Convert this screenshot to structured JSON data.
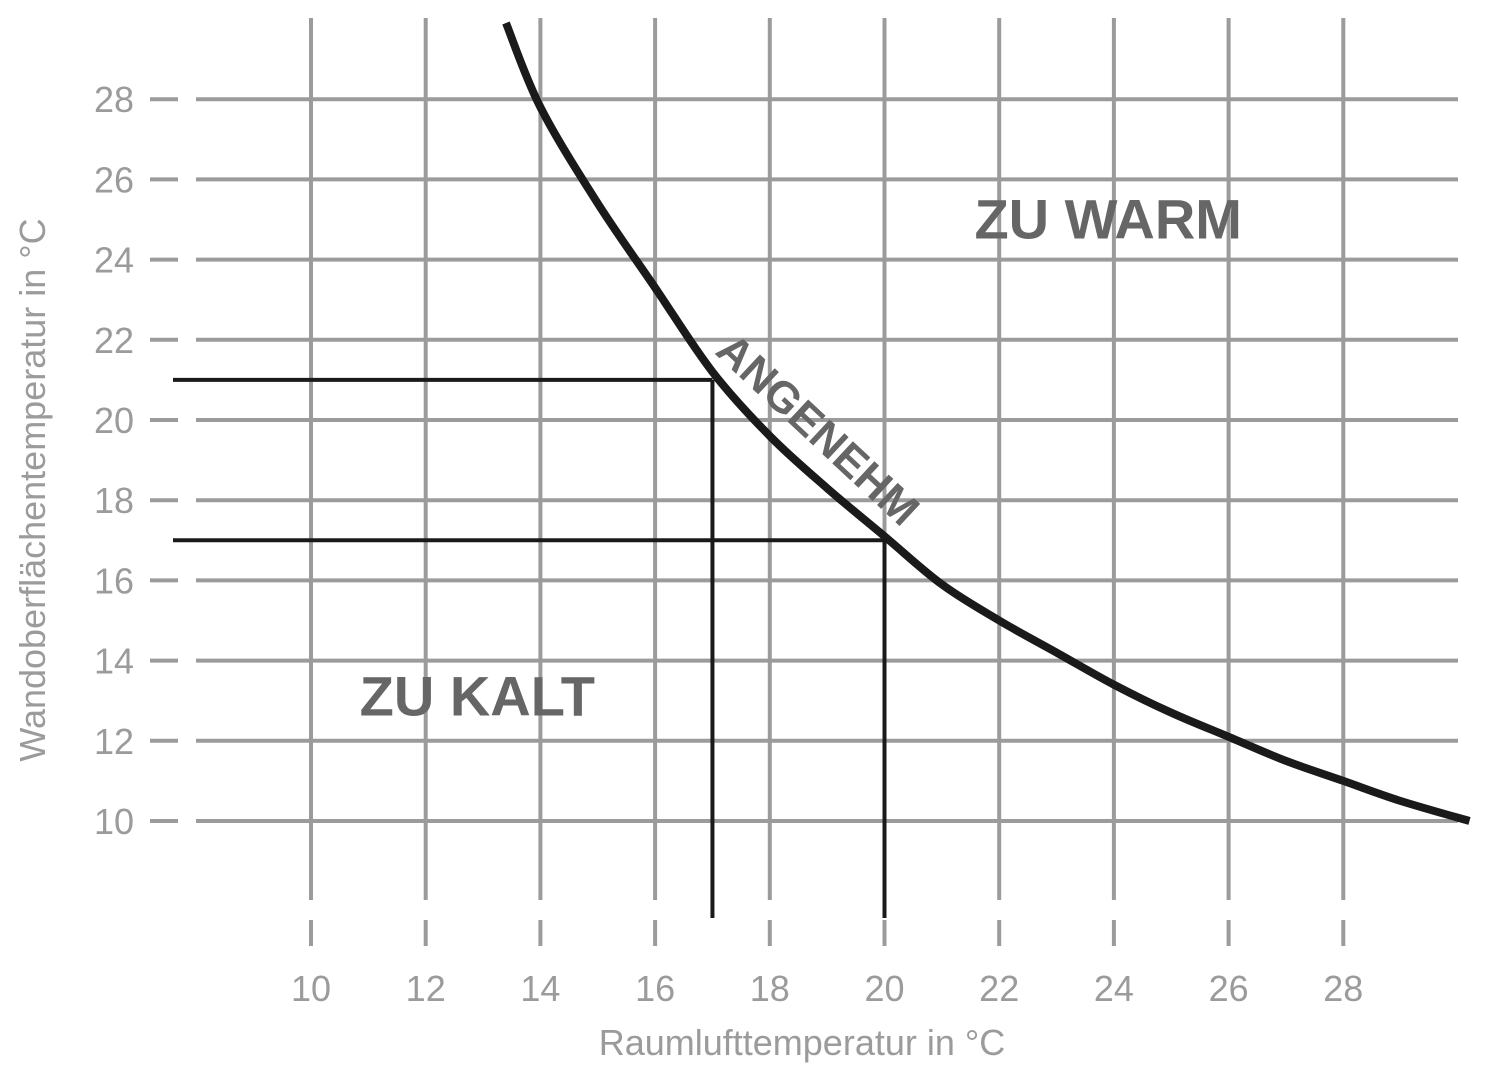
{
  "chart_data": {
    "type": "line",
    "xlabel": "Raumlufttemperatur in °C",
    "ylabel": "Wandoberflächentemperatur in °C",
    "xlim": [
      7,
      30.2
    ],
    "ylim": [
      7.9,
      29.5
    ],
    "xticks": [
      10,
      12,
      14,
      16,
      18,
      20,
      22,
      24,
      26,
      28
    ],
    "yticks": [
      10,
      12,
      14,
      16,
      18,
      20,
      22,
      24,
      26,
      28
    ],
    "x_tick_labels": [
      "10",
      "12",
      "14",
      "16",
      "18",
      "20",
      "22",
      "24",
      "26",
      "28"
    ],
    "y_tick_labels": [
      "10",
      "12",
      "14",
      "16",
      "18",
      "20",
      "22",
      "24",
      "26",
      "28"
    ],
    "grid": true,
    "series": [
      {
        "x": [
          13.4,
          14,
          15,
          16,
          17,
          18,
          19,
          20,
          21,
          22,
          23,
          24,
          25,
          26,
          27,
          28,
          29,
          30.2
        ],
        "y": [
          29.9,
          27.8,
          25.4,
          23.3,
          21.2,
          19.6,
          18.3,
          17.1,
          15.9,
          15.0,
          14.2,
          13.4,
          12.7,
          12.1,
          11.5,
          11.0,
          10.5,
          10.0
        ]
      }
    ],
    "reference_points": [
      {
        "x": 17,
        "y": 21
      },
      {
        "x": 20,
        "y": 17
      }
    ],
    "annotations": [
      {
        "text": "ZU WARM",
        "x": 23.9,
        "y": 24.9
      },
      {
        "text": "ANGENEHM",
        "x": 18.8,
        "y": 19.7,
        "rotation": 43
      },
      {
        "text": "ZU KALT",
        "x": 12.9,
        "y": 13.0
      }
    ]
  },
  "colors": {
    "grid": "#9b9b9b",
    "curve": "#1a1a1a",
    "region_text": "#666666"
  }
}
